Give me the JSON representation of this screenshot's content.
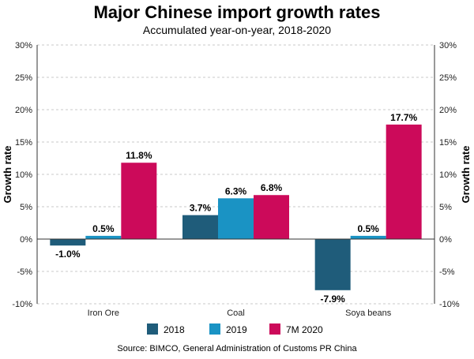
{
  "chart_data": {
    "type": "bar",
    "title": "Major Chinese import growth rates",
    "subtitle": "Accumulated year-on-year, 2018-2020",
    "ylabel": "Growth rate",
    "ylabel_right": "Growth rate",
    "categories": [
      "Iron Ore",
      "Coal",
      "Soya beans"
    ],
    "series": [
      {
        "name": "2018",
        "color": "#1f5c7a",
        "values": [
          -1.0,
          3.7,
          -7.9
        ],
        "labels": [
          "-1.0%",
          "3.7%",
          "-7.9%"
        ]
      },
      {
        "name": "2019",
        "color": "#1a93c4",
        "values": [
          0.5,
          6.3,
          0.5
        ],
        "labels": [
          "0.5%",
          "6.3%",
          "0.5%"
        ]
      },
      {
        "name": "7M 2020",
        "color": "#cc0a5a",
        "values": [
          11.8,
          6.8,
          17.7
        ],
        "labels": [
          "11.8%",
          "6.8%",
          "17.7%"
        ]
      }
    ],
    "ylim": [
      -10,
      30
    ],
    "yticks": [
      -10,
      -5,
      0,
      5,
      10,
      15,
      20,
      25,
      30
    ],
    "ytick_labels": [
      "-10%",
      "-5%",
      "0%",
      "5%",
      "10%",
      "15%",
      "20%",
      "25%",
      "30%"
    ],
    "grid": "dashed horizontal",
    "legend_position": "bottom-center",
    "source": "Source: BIMCO, General Administration of Customs PR China"
  }
}
